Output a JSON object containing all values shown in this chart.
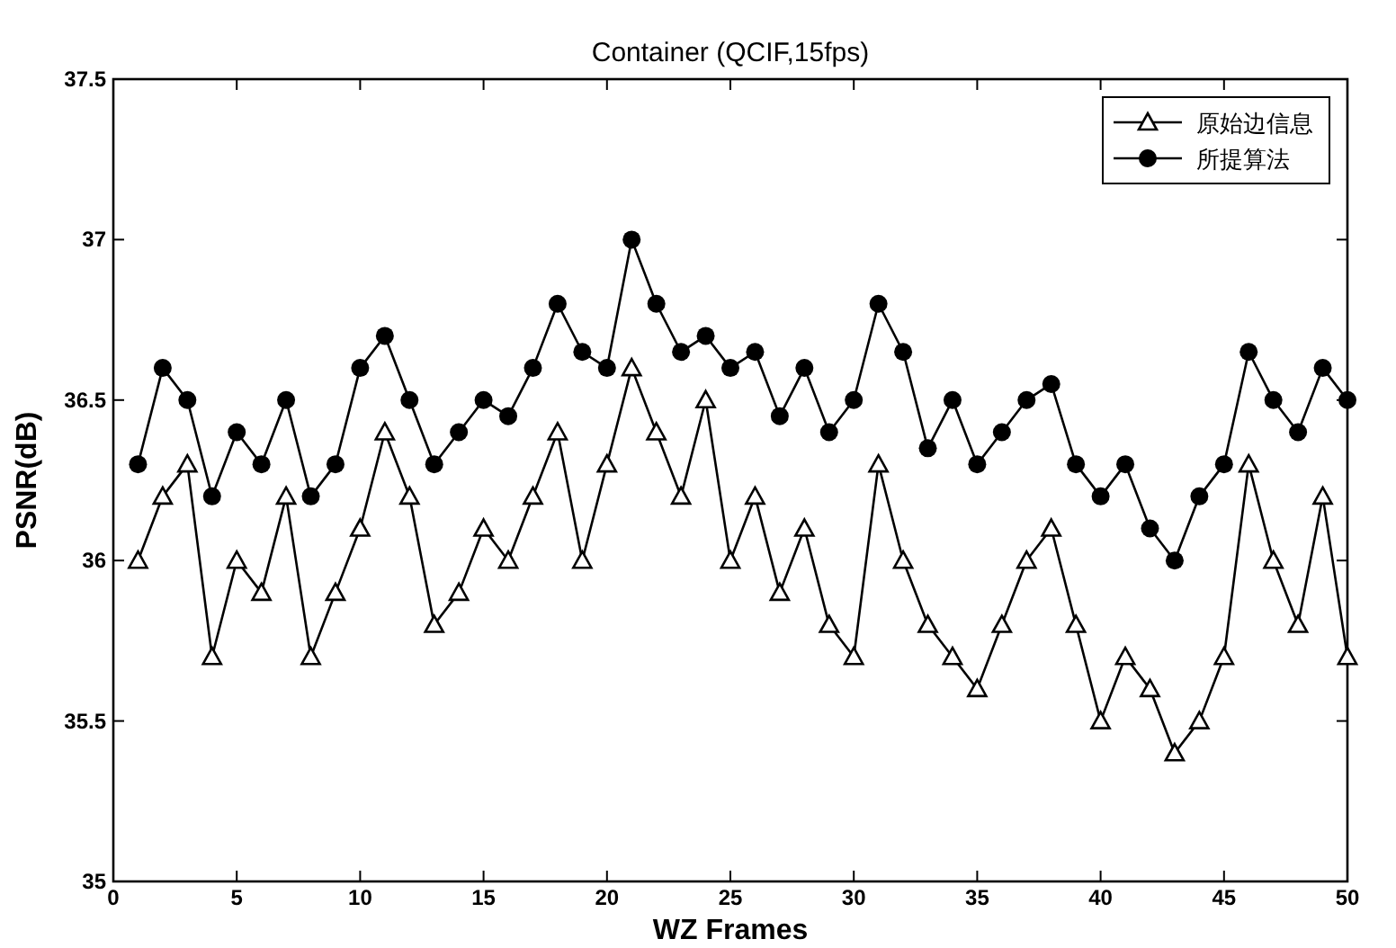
{
  "chart_data": {
    "type": "line",
    "title": "Container (QCIF,15fps)",
    "xlabel": "WZ Frames",
    "ylabel": "PSNR(dB)",
    "x": [
      1,
      2,
      3,
      4,
      5,
      6,
      7,
      8,
      9,
      10,
      11,
      12,
      13,
      14,
      15,
      16,
      17,
      18,
      19,
      20,
      21,
      22,
      23,
      24,
      25,
      26,
      27,
      28,
      29,
      30,
      31,
      32,
      33,
      34,
      35,
      36,
      37,
      38,
      39,
      40,
      41,
      42,
      43,
      44,
      45,
      46,
      47,
      48,
      49,
      50
    ],
    "series": [
      {
        "name": "原始边信息",
        "color": "#000000",
        "marker": "triangle",
        "values": [
          36.0,
          36.2,
          36.3,
          35.7,
          36.0,
          35.9,
          36.2,
          35.7,
          35.9,
          36.1,
          36.4,
          36.2,
          35.8,
          35.9,
          36.1,
          36.0,
          36.2,
          36.4,
          36.0,
          36.3,
          36.6,
          36.4,
          36.2,
          36.5,
          36.0,
          36.2,
          35.9,
          36.1,
          35.8,
          35.7,
          36.3,
          36.0,
          35.8,
          35.7,
          35.6,
          35.8,
          36.0,
          36.1,
          35.8,
          35.5,
          35.7,
          35.6,
          35.4,
          35.5,
          35.7,
          36.3,
          36.0,
          35.8,
          36.2,
          35.7
        ]
      },
      {
        "name": "所提算法",
        "color": "#000000",
        "marker": "circle",
        "values": [
          36.3,
          36.6,
          36.5,
          36.2,
          36.4,
          36.3,
          36.5,
          36.2,
          36.3,
          36.6,
          36.7,
          36.5,
          36.3,
          36.4,
          36.5,
          36.45,
          36.6,
          36.8,
          36.65,
          36.6,
          37.0,
          36.8,
          36.65,
          36.7,
          36.6,
          36.65,
          36.45,
          36.6,
          36.4,
          36.5,
          36.8,
          36.65,
          36.35,
          36.5,
          36.3,
          36.4,
          36.5,
          36.55,
          36.3,
          36.2,
          36.3,
          36.1,
          36.0,
          36.2,
          36.3,
          36.65,
          36.5,
          36.4,
          36.6,
          36.5
        ]
      }
    ],
    "xlim": [
      0,
      50
    ],
    "xticks": [
      0,
      5,
      10,
      15,
      20,
      25,
      30,
      35,
      40,
      45,
      50
    ],
    "ylim": [
      35,
      37.5
    ],
    "yticks": [
      35,
      35.5,
      36,
      36.5,
      37,
      37.5
    ],
    "legend": "top right",
    "line_style": "solid",
    "grid": false
  }
}
